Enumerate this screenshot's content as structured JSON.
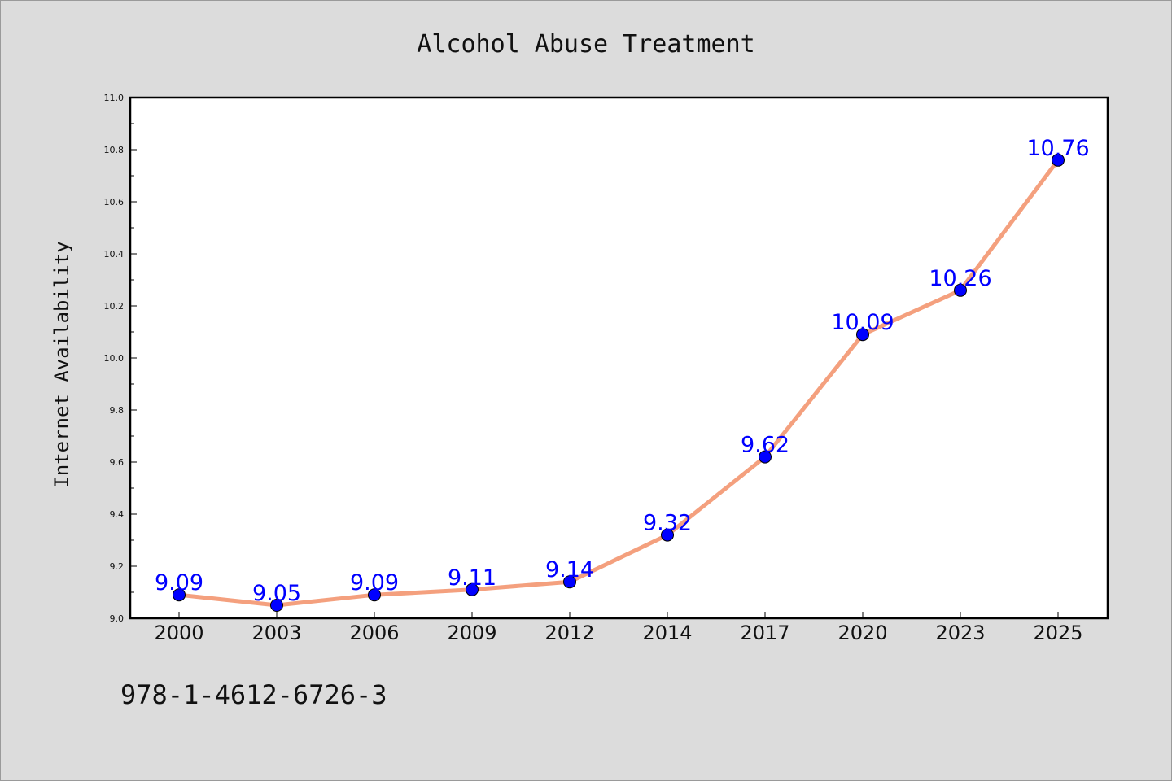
{
  "chart_data": {
    "type": "line",
    "title": "Alcohol Abuse Treatment",
    "xlabel": "",
    "ylabel": "Internet Availability",
    "categories": [
      "2000",
      "2003",
      "2006",
      "2009",
      "2012",
      "2014",
      "2017",
      "2020",
      "2023",
      "2025"
    ],
    "series": [
      {
        "values": [
          9.09,
          9.05,
          9.09,
          9.11,
          9.14,
          9.32,
          9.62,
          10.09,
          10.26,
          10.76
        ],
        "labels": [
          "9.09",
          "9.05",
          "9.09",
          "9.11",
          "9.14",
          "9.32",
          "9.62",
          "10.09",
          "10.26",
          "10.76"
        ]
      }
    ],
    "ylim": [
      9.0,
      11.0
    ],
    "yticks": [
      "9.0",
      "9.2",
      "9.4",
      "9.6",
      "9.8",
      "10.0",
      "10.2",
      "10.4",
      "10.6",
      "10.8",
      "11.0"
    ],
    "grid": false,
    "colors": {
      "line": "#f4a07e",
      "marker": "#0000ff",
      "label": "#0000ff",
      "background": "#dcdcdc",
      "plot_bg": "#ffffff"
    }
  },
  "footer": {
    "isbn": "978-1-4612-6726-3"
  }
}
